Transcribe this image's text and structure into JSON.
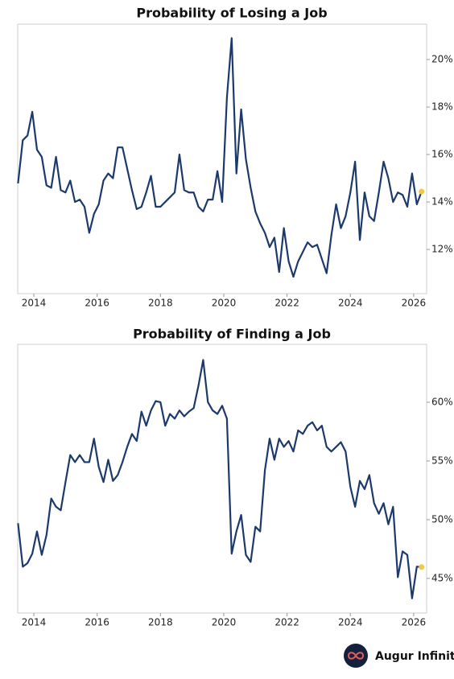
{
  "chart_data": [
    {
      "type": "line",
      "title": "Probability of Losing a Job",
      "color": "#1b3a6b",
      "end_marker_color": "#f2c744",
      "x": [
        2013.5,
        2013.65,
        2013.8,
        2013.95,
        2014.1,
        2014.25,
        2014.4,
        2014.55,
        2014.7,
        2014.85,
        2015,
        2015.15,
        2015.3,
        2015.45,
        2015.6,
        2015.75,
        2015.9,
        2016.05,
        2016.2,
        2016.35,
        2016.5,
        2016.65,
        2016.8,
        2016.95,
        2017.1,
        2017.25,
        2017.4,
        2017.55,
        2017.7,
        2017.85,
        2018,
        2018.15,
        2018.3,
        2018.45,
        2018.6,
        2018.75,
        2018.9,
        2019.05,
        2019.2,
        2019.35,
        2019.5,
        2019.65,
        2019.8,
        2019.95,
        2020.1,
        2020.25,
        2020.4,
        2020.55,
        2020.7,
        2020.85,
        2021,
        2021.15,
        2021.3,
        2021.45,
        2021.6,
        2021.75,
        2021.9,
        2022.05,
        2022.2,
        2022.35,
        2022.5,
        2022.65,
        2022.8,
        2022.95,
        2023.1,
        2023.25,
        2023.4,
        2023.55,
        2023.7,
        2023.85,
        2024,
        2024.15,
        2024.3,
        2024.45,
        2024.6,
        2024.75,
        2024.9,
        2025.05,
        2025.2,
        2025.35,
        2025.5,
        2025.65,
        2025.8,
        2025.95,
        2026.1,
        2026.25
      ],
      "values": [
        14.78,
        16.6,
        16.8,
        17.8,
        16.2,
        15.9,
        14.7,
        14.6,
        15.9,
        14.5,
        14.4,
        14.9,
        14.0,
        14.1,
        13.8,
        12.7,
        13.5,
        13.9,
        14.9,
        15.2,
        15.0,
        16.3,
        16.3,
        15.4,
        14.5,
        13.7,
        13.8,
        14.4,
        15.1,
        13.8,
        13.8,
        14.0,
        14.2,
        14.4,
        16.0,
        14.5,
        14.4,
        14.4,
        13.8,
        13.6,
        14.1,
        14.1,
        15.3,
        14.0,
        18.4,
        20.9,
        15.2,
        17.9,
        15.8,
        14.6,
        13.6,
        13.1,
        12.7,
        12.1,
        12.5,
        11.05,
        12.9,
        11.5,
        10.85,
        11.5,
        11.9,
        12.3,
        12.1,
        12.2,
        11.6,
        11.0,
        12.6,
        13.9,
        12.9,
        13.4,
        14.4,
        15.7,
        12.4,
        14.4,
        13.4,
        13.2,
        14.4,
        15.7,
        15.0,
        14.0,
        14.4,
        14.3,
        13.8,
        15.2,
        13.9,
        14.44
      ],
      "xlim": [
        2013.49,
        2026.41
      ],
      "xticks": [
        2014,
        2016,
        2018,
        2020,
        2022,
        2024,
        2026
      ],
      "ylim": [
        10.14,
        21.49
      ],
      "yticks": [
        {
          "value": 12,
          "label": "12%"
        },
        {
          "value": 14,
          "label": "14%"
        },
        {
          "value": 16,
          "label": "16%"
        },
        {
          "value": 18,
          "label": "18%"
        },
        {
          "value": 20,
          "label": "20%"
        }
      ]
    },
    {
      "type": "line",
      "title": "Probability of Finding a Job",
      "color": "#1b3a6b",
      "end_marker_color": "#f2c744",
      "x": [
        2013.5,
        2013.65,
        2013.8,
        2013.95,
        2014.1,
        2014.25,
        2014.4,
        2014.55,
        2014.7,
        2014.85,
        2015,
        2015.15,
        2015.3,
        2015.45,
        2015.6,
        2015.75,
        2015.9,
        2016.05,
        2016.2,
        2016.35,
        2016.5,
        2016.65,
        2016.8,
        2016.95,
        2017.1,
        2017.25,
        2017.4,
        2017.55,
        2017.7,
        2017.85,
        2018,
        2018.15,
        2018.3,
        2018.45,
        2018.6,
        2018.75,
        2018.9,
        2019.05,
        2019.2,
        2019.35,
        2019.5,
        2019.65,
        2019.8,
        2019.95,
        2020.1,
        2020.25,
        2020.4,
        2020.55,
        2020.7,
        2020.85,
        2021,
        2021.15,
        2021.3,
        2021.45,
        2021.6,
        2021.75,
        2021.9,
        2022.05,
        2022.2,
        2022.35,
        2022.5,
        2022.65,
        2022.8,
        2022.95,
        2023.1,
        2023.25,
        2023.4,
        2023.55,
        2023.7,
        2023.85,
        2024,
        2024.15,
        2024.3,
        2024.45,
        2024.6,
        2024.75,
        2024.9,
        2025.05,
        2025.2,
        2025.35,
        2025.5,
        2025.65,
        2025.8,
        2025.95,
        2026.1,
        2026.25
      ],
      "values": [
        49.7,
        46.0,
        46.3,
        47.1,
        49.0,
        47.0,
        48.7,
        51.8,
        51.1,
        50.8,
        53.2,
        55.5,
        54.9,
        55.5,
        54.9,
        54.9,
        56.9,
        54.5,
        53.2,
        55.1,
        53.3,
        53.8,
        54.9,
        56.2,
        57.3,
        56.7,
        59.2,
        58.0,
        59.3,
        60.1,
        60.0,
        58.0,
        59.0,
        58.6,
        59.3,
        58.8,
        59.2,
        59.5,
        61.4,
        63.6,
        60.0,
        59.3,
        59.0,
        59.7,
        58.6,
        47.1,
        49.0,
        50.4,
        47.0,
        46.4,
        49.4,
        49.0,
        54.2,
        56.9,
        55.1,
        56.9,
        56.2,
        56.7,
        55.8,
        57.6,
        57.3,
        58.0,
        58.3,
        57.6,
        58.0,
        56.2,
        55.8,
        56.2,
        56.6,
        55.8,
        52.8,
        51.1,
        53.3,
        52.6,
        53.8,
        51.4,
        50.5,
        51.4,
        49.6,
        51.1,
        45.1,
        47.3,
        47.0,
        43.3,
        46.0,
        45.96
      ],
      "xlim": [
        2013.49,
        2026.41
      ],
      "xticks": [
        2014,
        2016,
        2018,
        2020,
        2022,
        2024,
        2026
      ],
      "ylim": [
        42.05,
        64.93
      ],
      "yticks": [
        {
          "value": 45,
          "label": "45%"
        },
        {
          "value": 50,
          "label": "50%"
        },
        {
          "value": 55,
          "label": "55%"
        },
        {
          "value": 60,
          "label": "60%"
        }
      ]
    }
  ],
  "brand": "Augur Infinity"
}
